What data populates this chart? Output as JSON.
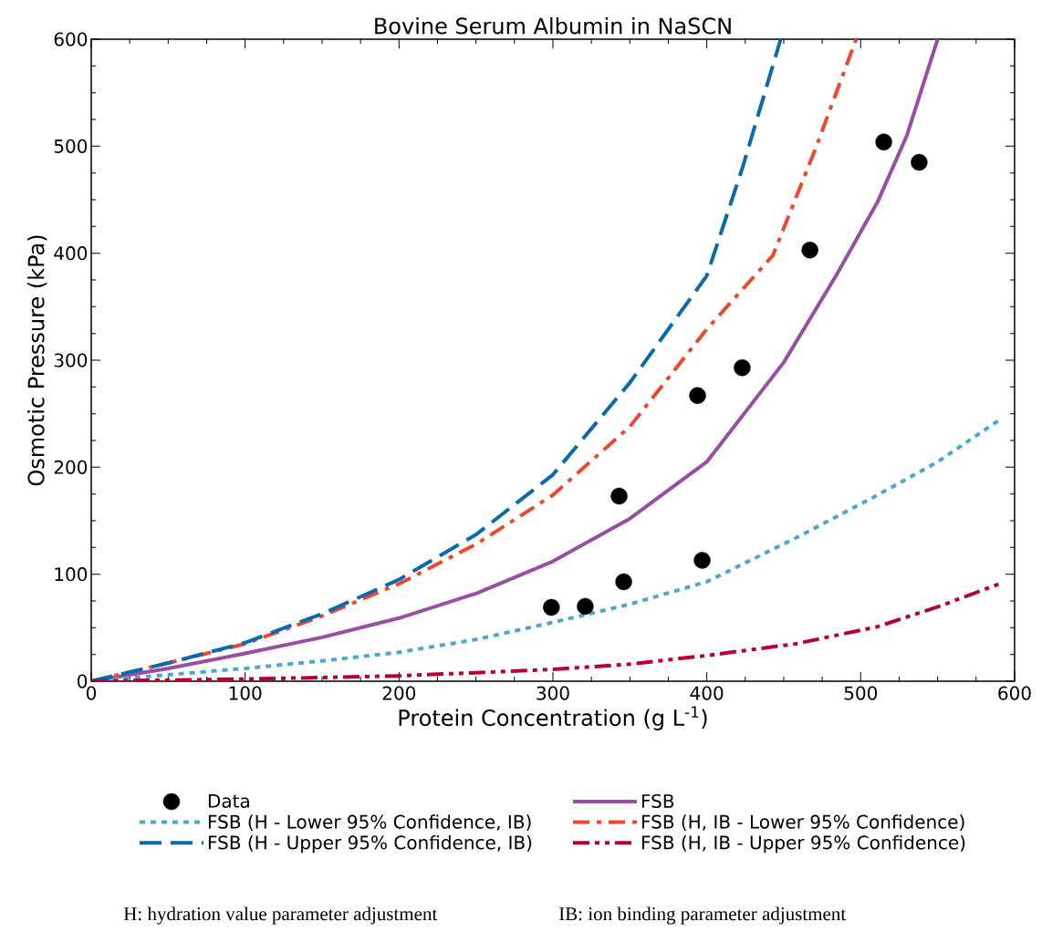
{
  "chart_data": {
    "type": "line",
    "title": "Bovine Serum Albumin in NaSCN",
    "xlabel": "Protein Concentration (g L$^{-1}$)",
    "ylabel": "Osmotic Pressure (kPa)",
    "xlim": [
      0,
      600
    ],
    "ylim": [
      0,
      600
    ],
    "xticks": [
      0,
      100,
      200,
      300,
      400,
      500,
      600
    ],
    "yticks": [
      0,
      100,
      200,
      300,
      400,
      500,
      600
    ],
    "legend": "bottom",
    "series": [
      {
        "name": "Data",
        "type": "scatter",
        "marker": "circle",
        "color": "#000000",
        "x": [
          299,
          321,
          343,
          346,
          394,
          397,
          423,
          467,
          515,
          538
        ],
        "values": [
          69,
          70,
          173,
          93,
          267,
          113,
          293,
          403,
          504,
          485
        ]
      },
      {
        "name": "FSB",
        "color": "#984ea3",
        "line_style": "solid",
        "x": [
          0,
          50,
          100,
          150,
          200,
          250,
          300,
          350,
          400,
          450,
          484,
          511,
          530,
          550
        ],
        "values": [
          0,
          12,
          26,
          41,
          59,
          82,
          112,
          152,
          205,
          298,
          379,
          448,
          510,
          600
        ]
      },
      {
        "name": "FSB (H - Lower 95% Confidence, IB)",
        "color": "#4aa6d2",
        "line_style": "dotted",
        "x": [
          0,
          50,
          100,
          150,
          200,
          250,
          300,
          350,
          400,
          458,
          511,
          550,
          590
        ],
        "values": [
          0,
          6,
          12,
          19,
          27,
          39,
          55,
          72,
          93,
          134,
          174,
          205,
          244
        ]
      },
      {
        "name": "FSB (H, IB - Lower 95% Confidence)",
        "color": "#f0462a",
        "line_style": "dashdot",
        "x": [
          0,
          50,
          100,
          150,
          200,
          250,
          300,
          350,
          400,
          443,
          471,
          497
        ],
        "values": [
          0,
          17,
          35,
          61,
          91,
          128,
          174,
          238,
          329,
          398,
          499,
          600
        ]
      },
      {
        "name": "FSB (H - Upper 95% Confidence, IB)",
        "color": "#0a6aad",
        "line_style": "dashed",
        "x": [
          0,
          50,
          100,
          150,
          200,
          250,
          300,
          350,
          400,
          423,
          448
        ],
        "values": [
          0,
          17,
          36,
          63,
          95,
          137,
          193,
          279,
          379,
          479,
          600
        ]
      },
      {
        "name": "FSB (H, IB - Upper 95% Confidence)",
        "color": "#b8002e",
        "line_style": "dashdotdot",
        "x": [
          0,
          100,
          200,
          300,
          350,
          400,
          458,
          511,
          551,
          590
        ],
        "values": [
          0,
          2,
          5,
          11,
          16,
          24,
          35,
          51,
          70,
          91
        ]
      }
    ],
    "annotations": [
      "H: hydration value parameter adjustment",
      "IB: ion binding parameter adjustment"
    ]
  }
}
